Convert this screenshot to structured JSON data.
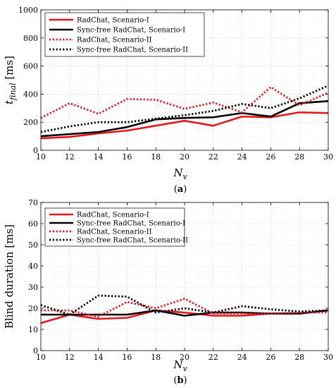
{
  "chart_data": [
    {
      "type": "line",
      "xlabel": "N_v",
      "ylabel": "t_final [ms]",
      "ylabel_main": "t",
      "ylabel_sub": "final",
      "ylabel_unit": " [ms]",
      "xlabel_main": "N",
      "xlabel_sub": "v",
      "caption": "(a)",
      "xlim": [
        10,
        30
      ],
      "ylim": [
        0,
        1000
      ],
      "xticks": [
        10,
        12,
        14,
        16,
        18,
        20,
        22,
        24,
        26,
        28,
        30
      ],
      "yticks": [
        0,
        200,
        400,
        600,
        800,
        1000
      ],
      "grid": true,
      "legend_position": "top-left",
      "x": [
        10,
        12,
        14,
        16,
        18,
        20,
        22,
        24,
        26,
        28,
        30
      ],
      "series": [
        {
          "name": "RadChat, Scenario-I",
          "color": "#e8141b",
          "style": "solid",
          "values": [
            85,
            95,
            120,
            140,
            175,
            210,
            175,
            240,
            235,
            270,
            265
          ]
        },
        {
          "name": "Sync-free RadChat, Scenario-I",
          "color": "#000000",
          "style": "solid",
          "values": [
            100,
            115,
            130,
            165,
            220,
            230,
            235,
            265,
            240,
            335,
            350
          ]
        },
        {
          "name": "RadChat, Scenario-II",
          "color": "#e8141b",
          "style": "dotted",
          "values": [
            230,
            335,
            260,
            365,
            360,
            295,
            340,
            270,
            450,
            320,
            410
          ]
        },
        {
          "name": "Sync-free RadChat, Scenario-II",
          "color": "#000000",
          "style": "dotted",
          "values": [
            130,
            170,
            200,
            200,
            225,
            250,
            280,
            330,
            300,
            370,
            460
          ]
        }
      ]
    },
    {
      "type": "line",
      "xlabel": "N_v",
      "ylabel": "Blind duration [ms]",
      "xlabel_main": "N",
      "xlabel_sub": "v",
      "caption": "(b)",
      "xlim": [
        10,
        30
      ],
      "ylim": [
        0,
        70
      ],
      "xticks": [
        10,
        12,
        14,
        16,
        18,
        20,
        22,
        24,
        26,
        28,
        30
      ],
      "yticks": [
        0,
        10,
        20,
        30,
        40,
        50,
        60,
        70
      ],
      "grid": true,
      "legend_position": "top-left",
      "x": [
        10,
        12,
        14,
        16,
        18,
        20,
        22,
        24,
        26,
        28,
        30
      ],
      "series": [
        {
          "name": "RadChat, Scenario-I",
          "color": "#e8141b",
          "style": "solid",
          "values": [
            13,
            17,
            15,
            15.5,
            19,
            18,
            16.5,
            16.5,
            17.5,
            17.5,
            19
          ]
        },
        {
          "name": "Sync-free RadChat, Scenario-I",
          "color": "#000000",
          "style": "solid",
          "values": [
            17,
            17,
            17,
            17,
            19,
            16.5,
            18,
            18,
            17.5,
            17.5,
            19
          ]
        },
        {
          "name": "RadChat, Scenario-II",
          "color": "#e8141b",
          "style": "dotted",
          "values": [
            19,
            19,
            16,
            23,
            20,
            24.5,
            17.5,
            17.5,
            17.5,
            18,
            18
          ]
        },
        {
          "name": "Sync-free RadChat, Scenario-II",
          "color": "#000000",
          "style": "dotted",
          "values": [
            21.5,
            17,
            26,
            25.5,
            18,
            20,
            18,
            21,
            19.5,
            18.5,
            19
          ]
        }
      ]
    }
  ]
}
